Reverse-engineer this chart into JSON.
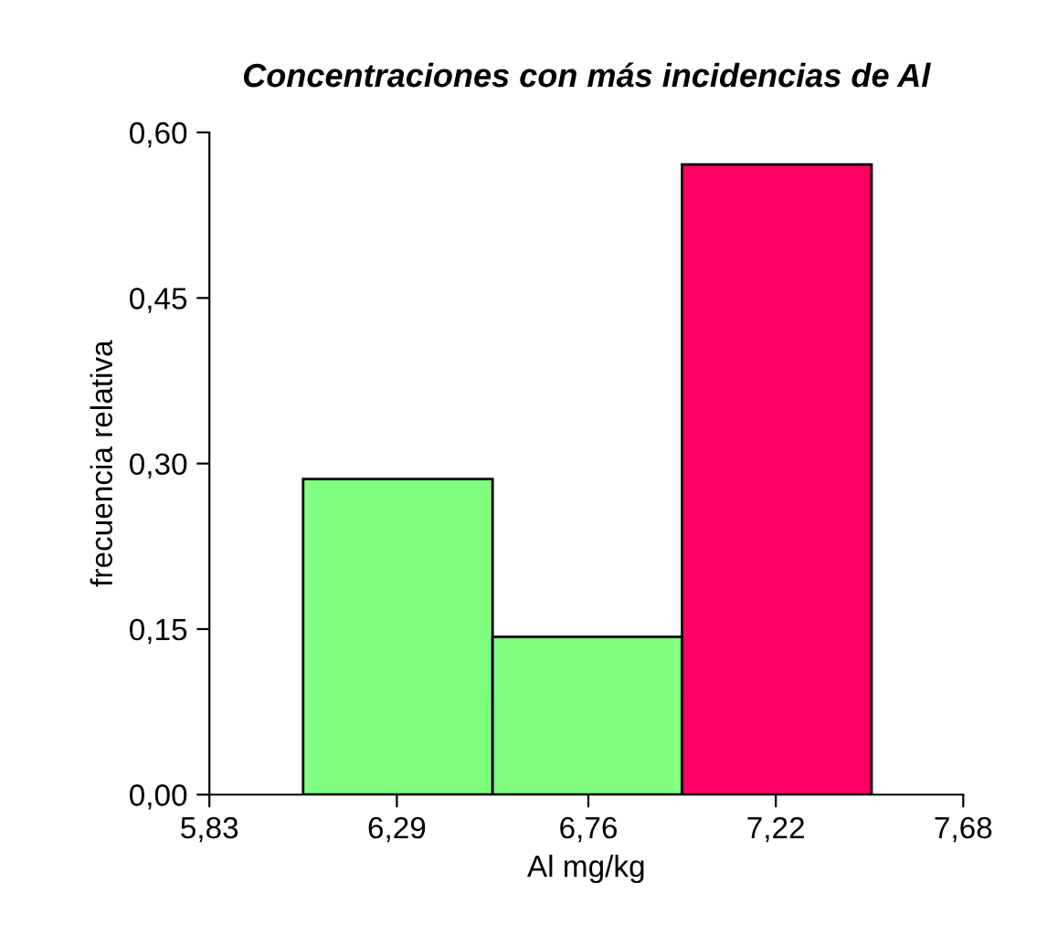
{
  "chart_data": {
    "type": "histogram",
    "title": "Concentraciones con más incidencias de Al",
    "xlabel": "Al mg/kg",
    "ylabel": "frecuencia relativa",
    "bins": [
      6.06,
      6.525,
      6.99,
      7.455
    ],
    "values": [
      0.286,
      0.143,
      0.571
    ],
    "colors": [
      "#80ff80",
      "#80ff80",
      "#ff0066"
    ],
    "xlim": [
      5.83,
      7.68
    ],
    "xticks": [
      {
        "value": 5.83,
        "label": "5,83"
      },
      {
        "value": 6.29,
        "label": "6,29"
      },
      {
        "value": 6.76,
        "label": "6,76"
      },
      {
        "value": 7.22,
        "label": "7,22"
      },
      {
        "value": 7.68,
        "label": "7,68"
      }
    ],
    "ylim": [
      0,
      0.6
    ],
    "yticks": [
      {
        "value": 0,
        "label": "0,00"
      },
      {
        "value": 0.15,
        "label": "0,15"
      },
      {
        "value": 0.3,
        "label": "0,30"
      },
      {
        "value": 0.45,
        "label": "0,45"
      },
      {
        "value": 0.6,
        "label": "0,60"
      }
    ],
    "grid": false,
    "legend": false
  }
}
